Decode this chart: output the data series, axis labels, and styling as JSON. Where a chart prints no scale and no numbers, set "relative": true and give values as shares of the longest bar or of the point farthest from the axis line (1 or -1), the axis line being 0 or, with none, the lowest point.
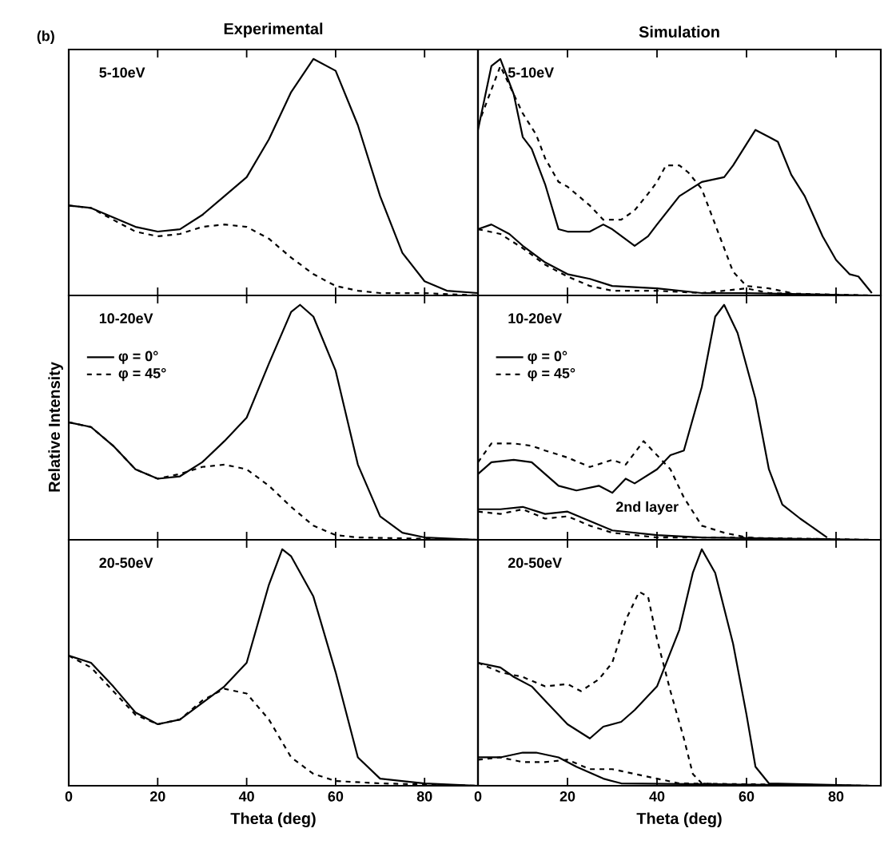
{
  "chart_data": [
    {
      "type": "line",
      "title": "Experimental",
      "relative": true,
      "xlim": [
        0,
        92
      ],
      "xticks": [
        0,
        20,
        40,
        60,
        80
      ],
      "tick_labels": false,
      "annotations": [
        "5-10eV",
        "(b)"
      ],
      "series": [
        {
          "color": "#000000",
          "line_style": "solid",
          "x": [
            0,
            5,
            10,
            15,
            20,
            25,
            30,
            35,
            40,
            45,
            50,
            55,
            60,
            65,
            70,
            75,
            80,
            85,
            92
          ],
          "values": [
            0.38,
            0.37,
            0.33,
            0.29,
            0.27,
            0.28,
            0.34,
            0.42,
            0.5,
            0.66,
            0.86,
            1.0,
            0.95,
            0.72,
            0.42,
            0.18,
            0.06,
            0.02,
            0.01
          ]
        },
        {
          "color": "#000000",
          "line_style": "dashed",
          "x": [
            0,
            5,
            10,
            15,
            20,
            25,
            30,
            35,
            40,
            45,
            50,
            55,
            60,
            65,
            70,
            80,
            92
          ],
          "values": [
            0.38,
            0.37,
            0.32,
            0.27,
            0.25,
            0.26,
            0.29,
            0.3,
            0.29,
            0.24,
            0.16,
            0.09,
            0.04,
            0.02,
            0.01,
            0.01,
            0
          ]
        }
      ]
    },
    {
      "type": "line",
      "title": "Simulation",
      "relative": true,
      "xlim": [
        0,
        90
      ],
      "xticks": [
        0,
        20,
        40,
        60,
        80
      ],
      "tick_labels": false,
      "annotations": [
        "5-10eV"
      ],
      "series": [
        {
          "color": "#000000",
          "line_style": "solid",
          "x": [
            0,
            3,
            5,
            8,
            10,
            12,
            15,
            18,
            20,
            25,
            28,
            30,
            35,
            38,
            40,
            45,
            50,
            55,
            57,
            60,
            62,
            65,
            67,
            70,
            73,
            77,
            80,
            83,
            85,
            88
          ],
          "values": [
            0.7,
            0.97,
            1.0,
            0.85,
            0.67,
            0.62,
            0.47,
            0.28,
            0.27,
            0.27,
            0.3,
            0.28,
            0.21,
            0.25,
            0.3,
            0.42,
            0.48,
            0.5,
            0.55,
            0.64,
            0.7,
            0.67,
            0.65,
            0.51,
            0.42,
            0.25,
            0.15,
            0.09,
            0.08,
            0.01
          ]
        },
        {
          "color": "#000000",
          "line_style": "dashed",
          "x": [
            0,
            5,
            8,
            10,
            13,
            15,
            18,
            20,
            25,
            28,
            32,
            35,
            38,
            40,
            42,
            45,
            47,
            50,
            53,
            57,
            60,
            65,
            70
          ],
          "values": [
            0.72,
            0.97,
            0.85,
            0.77,
            0.68,
            0.58,
            0.48,
            0.46,
            0.38,
            0.32,
            0.32,
            0.36,
            0.43,
            0.48,
            0.55,
            0.55,
            0.52,
            0.45,
            0.3,
            0.1,
            0.04,
            0.03,
            0.01
          ]
        },
        {
          "color": "#000000",
          "line_style": "solid",
          "x": [
            0,
            3,
            7,
            10,
            15,
            20,
            25,
            30,
            40,
            50,
            60,
            88
          ],
          "values": [
            0.28,
            0.3,
            0.26,
            0.21,
            0.14,
            0.09,
            0.07,
            0.04,
            0.03,
            0.01,
            0.01,
            0
          ]
        },
        {
          "color": "#000000",
          "line_style": "dashed",
          "x": [
            0,
            5,
            10,
            15,
            20,
            25,
            30,
            40,
            50,
            60,
            65,
            88
          ],
          "values": [
            0.28,
            0.26,
            0.2,
            0.13,
            0.08,
            0.04,
            0.02,
            0.02,
            0.01,
            0.03,
            0.01,
            0
          ]
        }
      ]
    },
    {
      "type": "line",
      "ylabel": "Relative Intensity",
      "relative": true,
      "xlim": [
        0,
        92
      ],
      "xticks": [
        0,
        20,
        40,
        60,
        80
      ],
      "tick_labels": false,
      "legend": "top left",
      "annotations": [
        "10-20eV"
      ],
      "series": [
        {
          "name": "φ = 0°",
          "color": "#000000",
          "line_style": "solid",
          "x": [
            0,
            5,
            10,
            15,
            20,
            25,
            30,
            35,
            40,
            45,
            50,
            52,
            55,
            60,
            65,
            70,
            75,
            80,
            92
          ],
          "values": [
            0.5,
            0.48,
            0.4,
            0.3,
            0.26,
            0.27,
            0.33,
            0.42,
            0.52,
            0.75,
            0.97,
            1.0,
            0.95,
            0.72,
            0.32,
            0.1,
            0.03,
            0.01,
            0
          ]
        },
        {
          "name": "φ = 45°",
          "color": "#000000",
          "line_style": "dashed",
          "x": [
            0,
            5,
            10,
            15,
            20,
            25,
            30,
            35,
            40,
            45,
            50,
            55,
            60,
            65,
            92
          ],
          "values": [
            0.5,
            0.48,
            0.4,
            0.3,
            0.26,
            0.28,
            0.31,
            0.32,
            0.3,
            0.23,
            0.14,
            0.06,
            0.02,
            0.01,
            0
          ]
        }
      ]
    },
    {
      "type": "line",
      "relative": true,
      "xlim": [
        0,
        90
      ],
      "xticks": [
        0,
        20,
        40,
        60,
        80
      ],
      "tick_labels": false,
      "legend": "top left",
      "annotations": [
        "10-20eV",
        "2nd layer"
      ],
      "series": [
        {
          "name": "φ = 0°",
          "color": "#000000",
          "line_style": "solid",
          "x": [
            0,
            3,
            8,
            12,
            15,
            18,
            22,
            27,
            30,
            33,
            35,
            40,
            43,
            46,
            50,
            53,
            55,
            58,
            62,
            65,
            68,
            72,
            78
          ],
          "values": [
            0.28,
            0.33,
            0.34,
            0.33,
            0.28,
            0.23,
            0.21,
            0.23,
            0.2,
            0.26,
            0.24,
            0.3,
            0.36,
            0.38,
            0.65,
            0.95,
            1.0,
            0.88,
            0.6,
            0.3,
            0.15,
            0.09,
            0.01
          ]
        },
        {
          "name": "φ = 45°",
          "color": "#000000",
          "line_style": "dashed",
          "x": [
            0,
            3,
            8,
            12,
            15,
            20,
            25,
            30,
            33,
            37,
            40,
            43,
            46,
            50,
            55,
            60,
            70
          ],
          "values": [
            0.33,
            0.41,
            0.41,
            0.4,
            0.38,
            0.35,
            0.31,
            0.34,
            0.32,
            0.42,
            0.36,
            0.3,
            0.18,
            0.06,
            0.03,
            0.01,
            0
          ]
        },
        {
          "color": "#000000",
          "line_style": "solid",
          "x": [
            0,
            5,
            10,
            15,
            20,
            25,
            30,
            40,
            50,
            88
          ],
          "values": [
            0.13,
            0.13,
            0.14,
            0.11,
            0.12,
            0.08,
            0.04,
            0.02,
            0.01,
            0
          ]
        },
        {
          "color": "#000000",
          "line_style": "dashed",
          "x": [
            0,
            5,
            10,
            15,
            20,
            25,
            30,
            40,
            55,
            88
          ],
          "values": [
            0.12,
            0.11,
            0.13,
            0.09,
            0.1,
            0.06,
            0.03,
            0.01,
            0.01,
            0
          ]
        }
      ]
    },
    {
      "type": "line",
      "xlabel": "Theta (deg)",
      "relative": true,
      "xlim": [
        0,
        92
      ],
      "xticks": [
        0,
        20,
        40,
        60,
        80
      ],
      "tick_labels": "x",
      "annotations": [
        "20-50eV"
      ],
      "series": [
        {
          "color": "#000000",
          "line_style": "solid",
          "x": [
            0,
            5,
            10,
            15,
            20,
            25,
            30,
            35,
            40,
            45,
            48,
            50,
            55,
            60,
            65,
            70,
            80,
            92
          ],
          "values": [
            0.55,
            0.52,
            0.42,
            0.31,
            0.26,
            0.28,
            0.35,
            0.42,
            0.52,
            0.85,
            1.0,
            0.97,
            0.8,
            0.48,
            0.12,
            0.03,
            0.01,
            0
          ]
        },
        {
          "color": "#000000",
          "line_style": "dashed",
          "x": [
            0,
            5,
            10,
            15,
            20,
            25,
            30,
            35,
            40,
            45,
            50,
            55,
            60,
            70,
            92
          ],
          "values": [
            0.55,
            0.5,
            0.4,
            0.3,
            0.26,
            0.28,
            0.36,
            0.41,
            0.39,
            0.28,
            0.12,
            0.05,
            0.02,
            0.01,
            0
          ]
        }
      ]
    },
    {
      "type": "line",
      "xlabel": "Theta (deg)",
      "relative": true,
      "xlim": [
        0,
        90
      ],
      "xticks": [
        0,
        20,
        40,
        60,
        80
      ],
      "tick_labels": "x",
      "annotations": [
        "20-50eV"
      ],
      "series": [
        {
          "color": "#000000",
          "line_style": "solid",
          "x": [
            0,
            5,
            8,
            12,
            15,
            20,
            25,
            28,
            32,
            35,
            40,
            45,
            48,
            50,
            53,
            57,
            60,
            62,
            65,
            88
          ],
          "values": [
            0.52,
            0.5,
            0.46,
            0.42,
            0.36,
            0.26,
            0.2,
            0.25,
            0.27,
            0.32,
            0.42,
            0.66,
            0.9,
            1.0,
            0.9,
            0.6,
            0.3,
            0.08,
            0.01,
            0
          ]
        },
        {
          "color": "#000000",
          "line_style": "dashed",
          "x": [
            0,
            5,
            10,
            15,
            20,
            23,
            27,
            30,
            33,
            36,
            38,
            40,
            43,
            46,
            48,
            50,
            60,
            88
          ],
          "values": [
            0.52,
            0.48,
            0.46,
            0.42,
            0.43,
            0.4,
            0.45,
            0.52,
            0.7,
            0.82,
            0.8,
            0.62,
            0.4,
            0.2,
            0.05,
            0.01,
            0,
            0
          ]
        },
        {
          "color": "#000000",
          "line_style": "solid",
          "x": [
            0,
            5,
            10,
            13,
            18,
            22,
            28,
            32,
            88
          ],
          "values": [
            0.12,
            0.12,
            0.14,
            0.14,
            0.12,
            0.08,
            0.03,
            0.01,
            0
          ]
        },
        {
          "color": "#000000",
          "line_style": "dashed",
          "x": [
            0,
            5,
            10,
            15,
            20,
            25,
            30,
            35,
            40,
            45,
            88
          ],
          "values": [
            0.11,
            0.12,
            0.1,
            0.1,
            0.11,
            0.07,
            0.07,
            0.05,
            0.03,
            0.01,
            0
          ]
        }
      ]
    }
  ]
}
